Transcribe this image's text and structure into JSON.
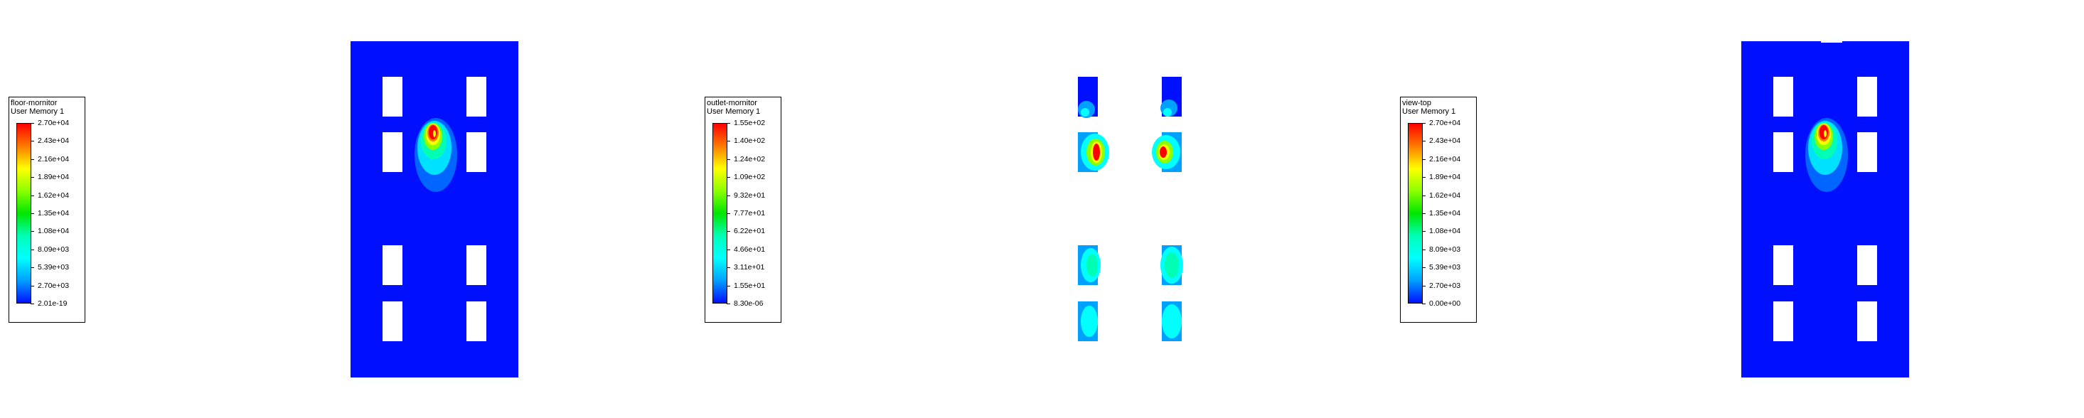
{
  "panels": [
    {
      "legend": {
        "surface_name": "floor-mornitor",
        "variable": "User Memory 1",
        "ticks": [
          "2.70e+04",
          "2.43e+04",
          "2.16e+04",
          "1.89e+04",
          "1.62e+04",
          "1.35e+04",
          "1.08e+04",
          "8.09e+03",
          "5.39e+03",
          "2.70e+03",
          "2.01e-19"
        ]
      },
      "field": {
        "background": "full",
        "hotspot": "high"
      }
    },
    {
      "legend": {
        "surface_name": "outlet-mornitor",
        "variable": "User Memory 1",
        "ticks": [
          "1.55e+02",
          "1.40e+02",
          "1.24e+02",
          "1.09e+02",
          "9.32e+01",
          "7.77e+01",
          "6.22e+01",
          "4.66e+01",
          "3.11e+01",
          "1.55e+01",
          "8.30e-06"
        ]
      },
      "field": {
        "background": "outlets-only",
        "hotspot": "outlets"
      }
    },
    {
      "legend": {
        "surface_name": "view-top",
        "variable": "User Memory 1",
        "ticks": [
          "2.70e+04",
          "2.43e+04",
          "2.16e+04",
          "1.89e+04",
          "1.62e+04",
          "1.35e+04",
          "1.08e+04",
          "8.09e+03",
          "5.39e+03",
          "2.70e+03",
          "0.00e+00"
        ]
      },
      "field": {
        "background": "full",
        "hotspot": "high"
      }
    }
  ],
  "colormap": [
    "#ff0000",
    "#ff7a00",
    "#ffff00",
    "#8cff00",
    "#00e600",
    "#00ffb4",
    "#00ffff",
    "#00a0ff",
    "#0010ff"
  ]
}
